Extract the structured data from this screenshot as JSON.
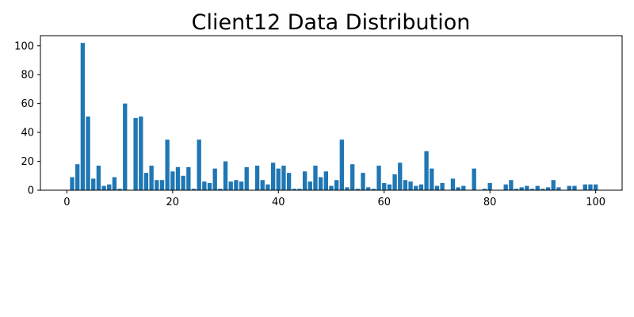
{
  "chart_data": {
    "type": "bar",
    "title": "Client12 Data Distribution",
    "xlabel": "",
    "ylabel": "",
    "bar_color": "#1f77b4",
    "xlim": [
      -5,
      105
    ],
    "ylim": [
      0,
      107
    ],
    "xticks": [
      0,
      20,
      40,
      60,
      80,
      100
    ],
    "yticks": [
      0,
      20,
      40,
      60,
      80,
      100
    ],
    "grid": false,
    "x": [
      0,
      1,
      2,
      3,
      4,
      5,
      6,
      7,
      8,
      9,
      10,
      11,
      12,
      13,
      14,
      15,
      16,
      17,
      18,
      19,
      20,
      21,
      22,
      23,
      24,
      25,
      26,
      27,
      28,
      29,
      30,
      31,
      32,
      33,
      34,
      35,
      36,
      37,
      38,
      39,
      40,
      41,
      42,
      43,
      44,
      45,
      46,
      47,
      48,
      49,
      50,
      51,
      52,
      53,
      54,
      55,
      56,
      57,
      58,
      59,
      60,
      61,
      62,
      63,
      64,
      65,
      66,
      67,
      68,
      69,
      70,
      71,
      72,
      73,
      74,
      75,
      76,
      77,
      78,
      79,
      80,
      81,
      82,
      83,
      84,
      85,
      86,
      87,
      88,
      89,
      90,
      91,
      92,
      93,
      94,
      95,
      96,
      97,
      98,
      99,
      100
    ],
    "values": [
      0,
      9,
      18,
      102,
      51,
      8,
      17,
      3,
      4,
      9,
      1,
      60,
      0,
      50,
      51,
      12,
      17,
      7,
      7,
      35,
      13,
      16,
      10,
      16,
      1,
      35,
      6,
      5,
      15,
      1,
      20,
      6,
      7,
      6,
      16,
      0,
      17,
      7,
      4,
      19,
      15,
      17,
      12,
      1,
      1,
      13,
      6,
      17,
      9,
      13,
      3,
      7,
      35,
      2,
      18,
      1,
      12,
      2,
      1,
      17,
      5,
      4,
      11,
      19,
      7,
      6,
      3,
      4,
      27,
      15,
      3,
      5,
      0,
      8,
      2,
      3,
      0,
      15,
      0,
      1,
      5,
      0,
      0,
      4,
      7,
      1,
      2,
      3,
      1,
      3,
      1,
      2,
      7,
      2,
      0,
      3,
      3,
      0,
      4,
      4,
      4
    ]
  }
}
